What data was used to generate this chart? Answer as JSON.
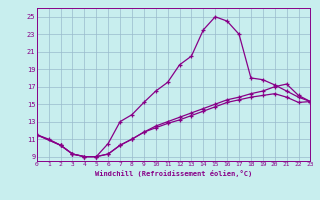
{
  "bg_color": "#c8eeee",
  "line_color": "#880088",
  "grid_color": "#99bbcc",
  "xlim": [
    0,
    23
  ],
  "ylim": [
    8.5,
    26.0
  ],
  "xticks": [
    0,
    1,
    2,
    3,
    4,
    5,
    6,
    7,
    8,
    9,
    10,
    11,
    12,
    13,
    14,
    15,
    16,
    17,
    18,
    19,
    20,
    21,
    22,
    23
  ],
  "yticks": [
    9,
    11,
    13,
    15,
    17,
    19,
    21,
    23,
    25
  ],
  "xlabel": "Windchill (Refroidissement éolien,°C)",
  "line1_x": [
    0,
    1,
    2,
    3,
    4,
    5,
    6,
    7,
    8,
    9,
    10,
    11,
    12,
    13,
    14,
    15,
    16,
    17,
    18,
    19,
    20,
    21,
    22,
    23
  ],
  "line1_y": [
    11.5,
    11.0,
    10.3,
    9.3,
    9.0,
    9.0,
    10.5,
    13.0,
    13.8,
    15.2,
    16.5,
    17.5,
    19.5,
    20.5,
    23.5,
    25.0,
    24.5,
    23.0,
    18.0,
    17.8,
    17.2,
    16.5,
    15.8,
    15.3
  ],
  "line2_x": [
    0,
    2,
    3,
    4,
    5,
    6,
    7,
    8,
    9,
    10,
    11,
    12,
    13,
    14,
    15,
    16,
    17,
    18,
    19,
    20,
    21,
    22,
    23
  ],
  "line2_y": [
    11.5,
    10.3,
    9.3,
    9.0,
    9.0,
    9.3,
    10.3,
    11.0,
    11.8,
    12.5,
    13.0,
    13.5,
    14.0,
    14.5,
    15.0,
    15.5,
    15.8,
    16.2,
    16.5,
    17.0,
    17.3,
    16.0,
    15.3
  ],
  "line3_x": [
    0,
    2,
    3,
    4,
    5,
    6,
    7,
    8,
    9,
    10,
    11,
    12,
    13,
    14,
    15,
    16,
    17,
    18,
    19,
    20,
    21,
    22,
    23
  ],
  "line3_y": [
    11.5,
    10.3,
    9.3,
    9.0,
    9.0,
    9.3,
    10.3,
    11.0,
    11.8,
    12.3,
    12.8,
    13.2,
    13.7,
    14.2,
    14.7,
    15.2,
    15.5,
    15.8,
    16.0,
    16.2,
    15.8,
    15.2,
    15.3
  ]
}
